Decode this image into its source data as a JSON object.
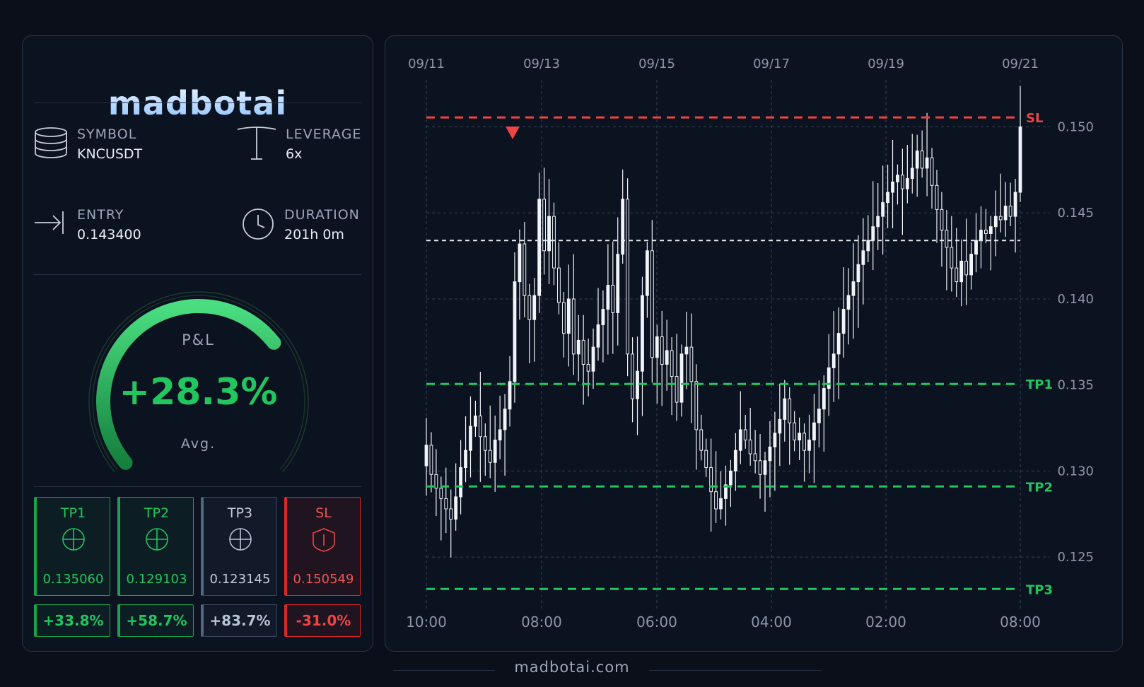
{
  "brand": {
    "logo_text": "madbotai",
    "footer_text": "madbotai.com"
  },
  "trade": {
    "symbol_label": "SYMBOL",
    "symbol": "KNCUSDT",
    "leverage_label": "LEVERAGE",
    "leverage": "6x",
    "entry_label": "ENTRY",
    "entry": "0.143400",
    "duration_label": "DURATION",
    "duration": "201h 0m"
  },
  "pnl": {
    "title": "P&L",
    "value": "+28.3%",
    "sub": "Avg.",
    "fraction": 0.7
  },
  "targets": [
    {
      "name": "TP1",
      "price": "0.135060",
      "pct": "+33.8%",
      "state": "hit"
    },
    {
      "name": "TP2",
      "price": "0.129103",
      "pct": "+58.7%",
      "state": "hit"
    },
    {
      "name": "TP3",
      "price": "0.123145",
      "pct": "+83.7%",
      "state": "open"
    },
    {
      "name": "SL",
      "price": "0.150549",
      "pct": "-31.0%",
      "state": "stop"
    }
  ],
  "colors": {
    "green": "#22c55e",
    "red": "#ef4444",
    "grey": "#b8c3d6",
    "candle": "#f1f4f8",
    "entry_line": "#e5e7eb"
  },
  "icons": {
    "symbol": "database-icon",
    "leverage": "lever-icon",
    "entry": "arrow-enter-icon",
    "duration": "clock-icon",
    "tp": "crosshair-icon",
    "sl": "shield-icon"
  },
  "chart_data": {
    "type": "candlestick",
    "top_date_labels": [
      "09/11",
      "09/13",
      "09/15",
      "09/17",
      "09/19",
      "09/21"
    ],
    "bottom_time_labels": [
      "10:00",
      "08:00",
      "06:00",
      "04:00",
      "02:00",
      "08:00"
    ],
    "y_ticks": [
      0.15,
      0.145,
      0.14,
      0.135,
      0.13,
      0.125
    ],
    "y_tick_labels": [
      "0.150",
      "0.145",
      "0.140",
      "0.135",
      "0.130",
      "0.125"
    ],
    "ylim": [
      0.1225,
      0.1515
    ],
    "levels": [
      {
        "name": "SL",
        "value": 0.150549,
        "color": "#ef4444"
      },
      {
        "name": "TP1",
        "value": 0.13506,
        "color": "#22c55e"
      },
      {
        "name": "TP2",
        "value": 0.129103,
        "color": "#22c55e"
      },
      {
        "name": "TP3",
        "value": 0.123145,
        "color": "#22c55e"
      }
    ],
    "entry": 0.1434,
    "signal_marker_index": 17,
    "closes": [
      0.1315,
      0.1298,
      0.129,
      0.1284,
      0.1278,
      0.1272,
      0.1285,
      0.1302,
      0.1312,
      0.1326,
      0.1332,
      0.132,
      0.1312,
      0.1305,
      0.1318,
      0.1324,
      0.1336,
      0.1352,
      0.141,
      0.1432,
      0.1402,
      0.1388,
      0.1402,
      0.1458,
      0.1428,
      0.1448,
      0.1418,
      0.1398,
      0.138,
      0.14,
      0.1368,
      0.1376,
      0.1362,
      0.1358,
      0.1372,
      0.1385,
      0.1394,
      0.1408,
      0.1392,
      0.1426,
      0.1458,
      0.1368,
      0.1342,
      0.1358,
      0.1402,
      0.1428,
      0.1366,
      0.1378,
      0.1362,
      0.137,
      0.1355,
      0.134,
      0.1368,
      0.1372,
      0.1352,
      0.1324,
      0.1312,
      0.1302,
      0.1288,
      0.1278,
      0.1284,
      0.1292,
      0.13,
      0.1312,
      0.1324,
      0.1318,
      0.131,
      0.1306,
      0.1298,
      0.1306,
      0.1314,
      0.1322,
      0.133,
      0.1342,
      0.1328,
      0.1318,
      0.1322,
      0.1312,
      0.1318,
      0.1328,
      0.1336,
      0.1348,
      0.136,
      0.1368,
      0.138,
      0.1394,
      0.1402,
      0.141,
      0.142,
      0.1428,
      0.1434,
      0.1442,
      0.1448,
      0.1456,
      0.1462,
      0.1468,
      0.1472,
      0.1464,
      0.147,
      0.1476,
      0.1486,
      0.1476,
      0.1482,
      0.1466,
      0.1452,
      0.144,
      0.143,
      0.1418,
      0.141,
      0.1422,
      0.1414,
      0.1426,
      0.1434,
      0.144,
      0.1438,
      0.1442,
      0.1448,
      0.1446,
      0.1454,
      0.1448,
      0.1462,
      0.15
    ]
  }
}
